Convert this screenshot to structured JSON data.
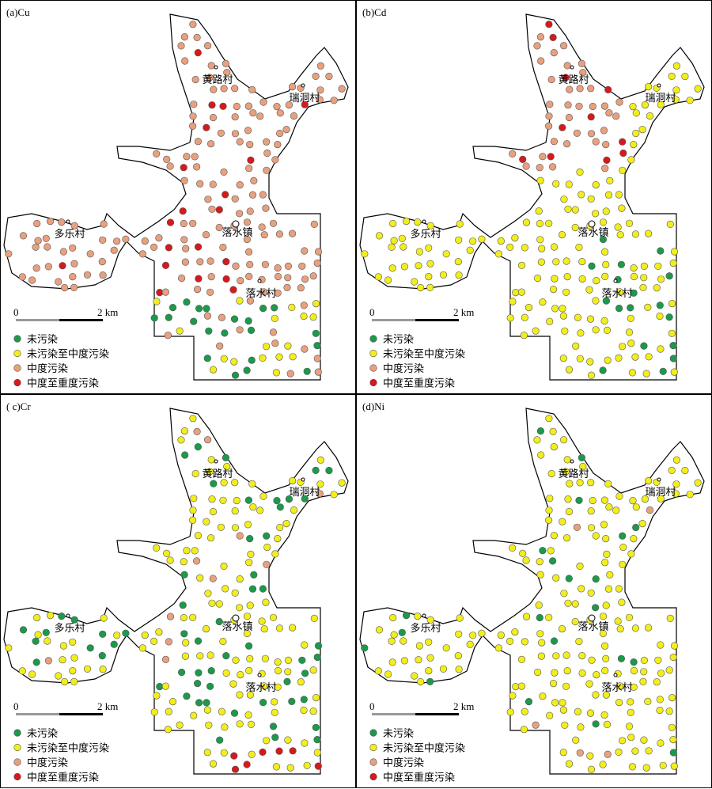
{
  "panels": [
    {
      "title": "(a)Cu"
    },
    {
      "title": "(b)Cd"
    },
    {
      "title": "( c)Cr"
    },
    {
      "title": "(d)Ni"
    }
  ],
  "places": [
    "黄路村",
    "瑞洞村",
    "多乐村",
    "落水镇",
    "落水村"
  ],
  "scale": {
    "zero": "0",
    "label": "2 km"
  },
  "legend": [
    {
      "label": "未污染",
      "color": "#1a9a4a"
    },
    {
      "label": "未污染至中度污染",
      "color": "#f2ee1c"
    },
    {
      "label": "中度污染",
      "color": "#e8a07e"
    },
    {
      "label": "中度至重度污染",
      "color": "#d7191c"
    }
  ]
}
